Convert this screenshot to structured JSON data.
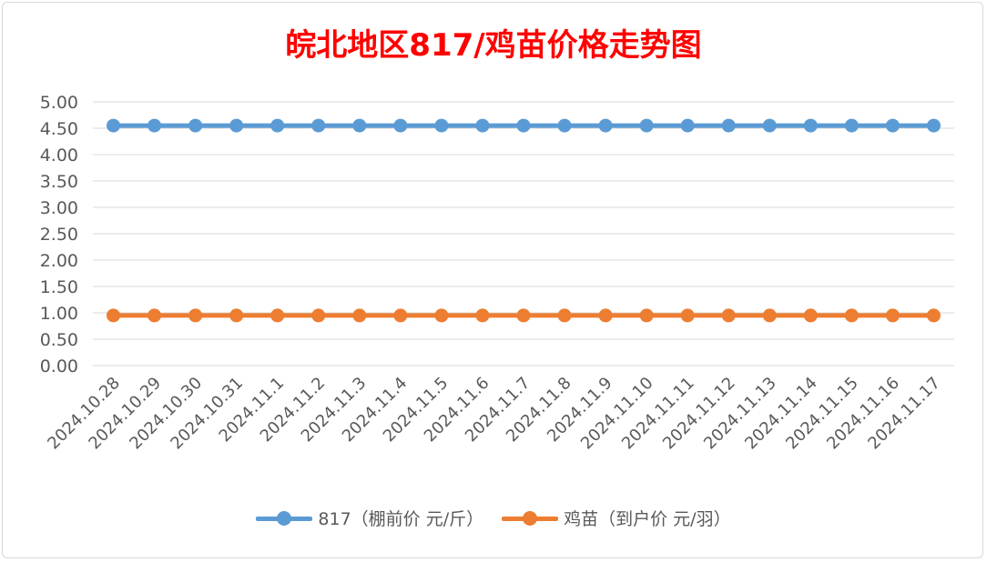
{
  "chart_data": {
    "type": "line",
    "title": "皖北地区817/鸡苗价格走势图",
    "categories": [
      "2024.10.28",
      "2024.10.29",
      "2024.10.30",
      "2024.10.31",
      "2024.11.1",
      "2024.11.2",
      "2024.11.3",
      "2024.11.4",
      "2024.11.5",
      "2024.11.6",
      "2024.11.7",
      "2024.11.8",
      "2024.11.9",
      "2024.11.10",
      "2024.11.11",
      "2024.11.12",
      "2024.11.13",
      "2024.11.14",
      "2024.11.15",
      "2024.11.16",
      "2024.11.17"
    ],
    "series": [
      {
        "name": "817（棚前价 元/斤）",
        "color": "#5b9bd5",
        "values": [
          4.55,
          4.55,
          4.55,
          4.55,
          4.55,
          4.55,
          4.55,
          4.55,
          4.55,
          4.55,
          4.55,
          4.55,
          4.55,
          4.55,
          4.55,
          4.55,
          4.55,
          4.55,
          4.55,
          4.55,
          4.55
        ]
      },
      {
        "name": "鸡苗（到户价 元/羽）",
        "color": "#ed7d31",
        "values": [
          0.95,
          0.95,
          0.95,
          0.95,
          0.95,
          0.95,
          0.95,
          0.95,
          0.95,
          0.95,
          0.95,
          0.95,
          0.95,
          0.95,
          0.95,
          0.95,
          0.95,
          0.95,
          0.95,
          0.95,
          0.95
        ]
      }
    ],
    "yticks": [
      "0.00",
      "0.50",
      "1.00",
      "1.50",
      "2.00",
      "2.50",
      "3.00",
      "3.50",
      "4.00",
      "4.50",
      "5.00"
    ],
    "ylim": [
      0,
      5
    ],
    "xlabel": "",
    "ylabel": "",
    "grid": true,
    "legend": "bottom"
  }
}
